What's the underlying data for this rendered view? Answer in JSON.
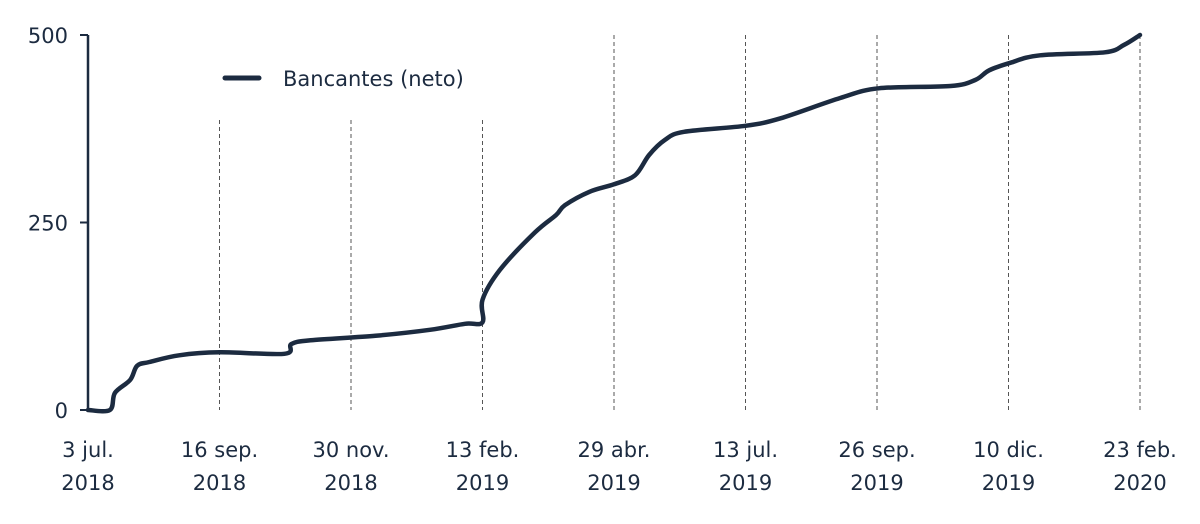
{
  "chart_data": {
    "type": "line",
    "title": "",
    "xlabel": "",
    "ylabel": "",
    "ylim": [
      0,
      500
    ],
    "yticks": [
      0,
      250,
      500
    ],
    "x_unit": "days since 3 jul. 2018",
    "xlim": [
      0,
      600
    ],
    "xticks": [
      {
        "day": 0,
        "line1": "3 jul.",
        "line2": "2018"
      },
      {
        "day": 75,
        "line1": "16 sep.",
        "line2": "2018"
      },
      {
        "day": 150,
        "line1": "30 nov.",
        "line2": "2018"
      },
      {
        "day": 225,
        "line1": "13 feb.",
        "line2": "2019"
      },
      {
        "day": 300,
        "line1": "29 abr.",
        "line2": "2019"
      },
      {
        "day": 375,
        "line1": "13 jul.",
        "line2": "2019"
      },
      {
        "day": 450,
        "line1": "26 sep.",
        "line2": "2019"
      },
      {
        "day": 525,
        "line1": "10 dic.",
        "line2": "2019"
      },
      {
        "day": 600,
        "line1": "23 feb.",
        "line2": "2020"
      }
    ],
    "grid": "vertical dashed",
    "legend": {
      "position": "top-left",
      "entries": [
        "Bancantes (neto)"
      ]
    },
    "series": [
      {
        "name": "Bancantes (neto)",
        "color": "#1c2b40",
        "points": [
          [
            0,
            0
          ],
          [
            12.5,
            0
          ],
          [
            15.4,
            23
          ],
          [
            24,
            40
          ],
          [
            28,
            59
          ],
          [
            35,
            64
          ],
          [
            52,
            73
          ],
          [
            75,
            77
          ],
          [
            112,
            75
          ],
          [
            116,
            88
          ],
          [
            127,
            93
          ],
          [
            164,
            99
          ],
          [
            195,
            107
          ],
          [
            215,
            115
          ],
          [
            225,
            117
          ],
          [
            225,
            147
          ],
          [
            235,
            187
          ],
          [
            255,
            237
          ],
          [
            267,
            260
          ],
          [
            272,
            273
          ],
          [
            286,
            291
          ],
          [
            300,
            301
          ],
          [
            312,
            313
          ],
          [
            320,
            340
          ],
          [
            329,
            360
          ],
          [
            340,
            371
          ],
          [
            375,
            379
          ],
          [
            395,
            389
          ],
          [
            429,
            416
          ],
          [
            451,
            429
          ],
          [
            492,
            432
          ],
          [
            506,
            440
          ],
          [
            514,
            453
          ],
          [
            526,
            463
          ],
          [
            543,
            473
          ],
          [
            580,
            477
          ],
          [
            591,
            487
          ],
          [
            600,
            500
          ]
        ]
      }
    ]
  }
}
